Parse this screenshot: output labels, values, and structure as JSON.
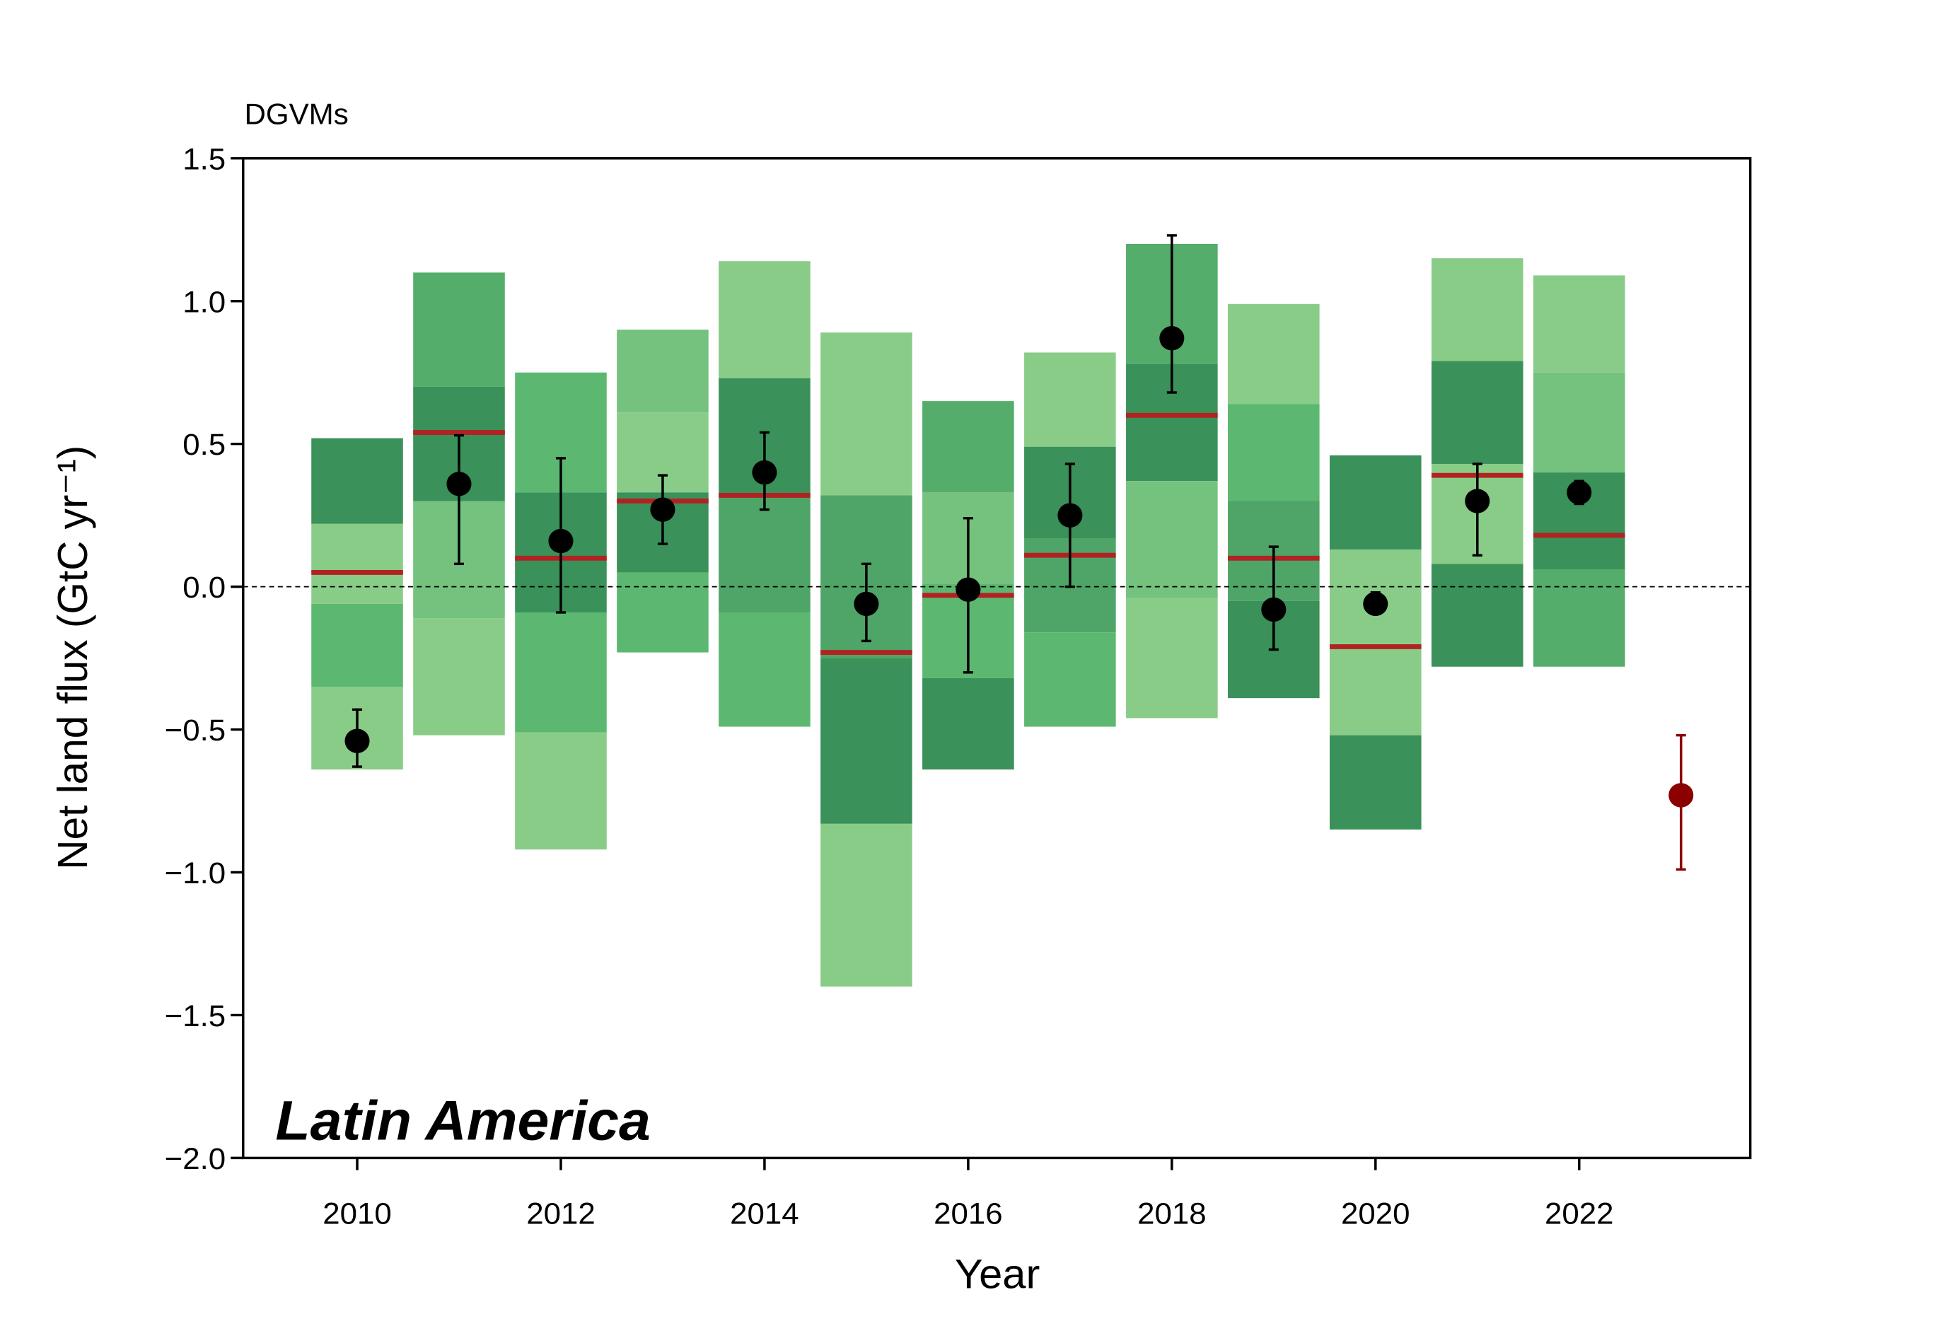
{
  "chart_data": {
    "type": "range_bar",
    "title": "DGVMs",
    "xlabel": "Year",
    "ylabel": "Net land flux (GtC yr⁻¹)",
    "annotation": "Latin America",
    "annotation_color": "#b22222",
    "x": [
      2010,
      2011,
      2012,
      2013,
      2014,
      2015,
      2016,
      2017,
      2018,
      2019,
      2020,
      2021,
      2022
    ],
    "bands": [
      [
        0.52,
        0.22,
        -0.06,
        -0.35,
        -0.64
      ],
      [
        1.1,
        0.7,
        0.3,
        -0.11,
        -0.52
      ],
      [
        0.75,
        0.33,
        -0.09,
        -0.51,
        -0.92
      ],
      [
        0.9,
        0.61,
        0.33,
        0.05,
        -0.23
      ],
      [
        1.14,
        0.73,
        0.32,
        -0.09,
        -0.49
      ],
      [
        0.89,
        0.32,
        -0.25,
        -0.83,
        -1.4
      ],
      [
        0.65,
        0.33,
        0.01,
        -0.32,
        -0.64
      ],
      [
        0.82,
        0.49,
        0.17,
        -0.16,
        -0.49
      ],
      [
        1.2,
        0.78,
        0.37,
        -0.04,
        -0.46
      ],
      [
        0.99,
        0.64,
        0.3,
        -0.05,
        -0.39
      ],
      [
        0.46,
        0.13,
        -0.2,
        -0.52,
        -0.85
      ],
      [
        1.15,
        0.79,
        0.43,
        0.08,
        -0.28
      ],
      [
        1.09,
        0.75,
        0.4,
        0.06,
        -0.28
      ]
    ],
    "band_colors": [
      [
        "#3a9159",
        "#88cc88",
        "#5cb870",
        "#88cc88"
      ],
      [
        "#55ad6b",
        "#3a9159",
        "#74c27e",
        "#88cc88"
      ],
      [
        "#5cb870",
        "#3a9159",
        "#5cb870",
        "#88cc88"
      ],
      [
        "#74c27e",
        "#88cc88",
        "#3a9159",
        "#5cb870"
      ],
      [
        "#88cc88",
        "#3a9159",
        "#4ea567",
        "#5cb870"
      ],
      [
        "#88cc88",
        "#4ea567",
        "#3a9159",
        "#88cc88"
      ],
      [
        "#55ad6b",
        "#74c27e",
        "#5cb870",
        "#3a9159"
      ],
      [
        "#88cc88",
        "#3a9159",
        "#4ea567",
        "#5cb870"
      ],
      [
        "#55ad6b",
        "#3a9159",
        "#74c27e",
        "#88cc88"
      ],
      [
        "#88cc88",
        "#5cb870",
        "#4ea567",
        "#3a9159"
      ],
      [
        "#3a9159",
        "#88cc88",
        "#88cc88",
        "#3a9159"
      ],
      [
        "#88cc88",
        "#3a9159",
        "#88cc88",
        "#3a9159"
      ],
      [
        "#88cc88",
        "#74c27e",
        "#3a9159",
        "#55ad6b"
      ]
    ],
    "median_color": "#b22222",
    "medians": [
      0.05,
      0.54,
      0.1,
      0.3,
      0.32,
      -0.23,
      -0.03,
      0.11,
      0.6,
      0.1,
      -0.21,
      0.39,
      0.18
    ],
    "mean_color": "#000000",
    "means": [
      -0.54,
      0.36,
      0.16,
      0.27,
      0.4,
      -0.06,
      -0.01,
      0.25,
      0.87,
      -0.08,
      -0.06,
      0.3,
      0.33
    ],
    "err_low": [
      -0.63,
      0.08,
      -0.09,
      0.15,
      0.27,
      -0.19,
      -0.3,
      0.0,
      0.68,
      -0.22,
      -0.07,
      0.11,
      0.29
    ],
    "err_high": [
      -0.43,
      0.53,
      0.45,
      0.39,
      0.54,
      0.08,
      0.24,
      0.43,
      1.23,
      0.14,
      -0.02,
      0.43,
      0.37
    ],
    "extra_point": {
      "x": 2023,
      "value": -0.73,
      "err_low": -0.99,
      "err_high": -0.52,
      "color": "#8b0000"
    },
    "hline": 0,
    "xlim": [
      2008.88,
      2023.68
    ],
    "ylim": [
      -2.0,
      1.5
    ],
    "xticks": [
      2010,
      2012,
      2014,
      2016,
      2018,
      2020,
      2022
    ],
    "yticks": [
      {
        "value": -2.0,
        "label": "−2.0"
      },
      {
        "value": -1.5,
        "label": "−1.5"
      },
      {
        "value": -1.0,
        "label": "−1.0"
      },
      {
        "value": -0.5,
        "label": "−0.5"
      },
      {
        "value": 0.0,
        "label": "0.0"
      },
      0.5,
      {
        "value": 1.0,
        "label": "1.0"
      },
      1.5
    ]
  }
}
